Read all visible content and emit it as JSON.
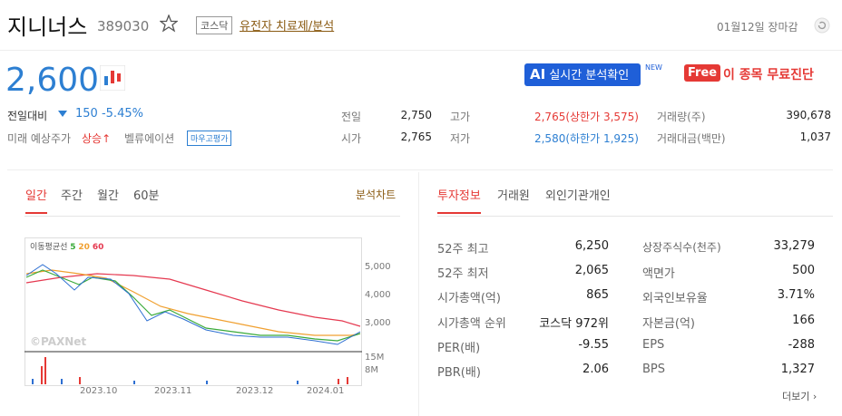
{
  "header": {
    "name": "지니너스",
    "code": "389030",
    "market": "코스닥",
    "sector": "유전자 치료제/분석",
    "date": "01월12일 장마감"
  },
  "price": {
    "current": "2,600",
    "change_label": "전일대비",
    "change": "150",
    "change_pct": "-5.45%",
    "forecast_label": "미래 예상주가",
    "forecast": "상승",
    "valuation_label": "벨류에이션",
    "valuation": "마우고평가"
  },
  "buttons": {
    "ai": "AI",
    "ai_text": "실시간 분석확인",
    "new": "NEW",
    "free": "Free",
    "free_text": "이 종목 무료진단"
  },
  "quote": {
    "rows": [
      [
        "전일",
        "2,750",
        "고가",
        "2,765(상한가 3,575)",
        "거래량(주)",
        "390,678"
      ],
      [
        "시가",
        "2,765",
        "저가",
        "2,580(하한가 1,925)",
        "거래대금(백만)",
        "1,037"
      ]
    ]
  },
  "chart": {
    "tabs": [
      "일간",
      "주간",
      "월간",
      "60분"
    ],
    "link": "분석차트",
    "ma_label": "이동평균선",
    "ma": [
      "5",
      "20",
      "60"
    ],
    "y_labels": [
      "5,000",
      "4,000",
      "3,000"
    ],
    "vol_labels": [
      "15M",
      "8M"
    ],
    "x_labels": [
      "2023.10",
      "2023.11",
      "2023.12",
      "2024.01"
    ],
    "watermark": "©PAXNet"
  },
  "info": {
    "tabs": [
      "투자정보",
      "거래원",
      "외인기관개인"
    ],
    "rows": [
      [
        "52주 최고",
        "6,250",
        "상장주식수(천주)",
        "33,279"
      ],
      [
        "52주 최저",
        "2,065",
        "액면가",
        "500"
      ],
      [
        "시가총액(억)",
        "865",
        "외국인보유율",
        "3.71%"
      ],
      [
        "시가총액 순위",
        "코스닥 972위",
        "자본금(억)",
        "166"
      ],
      [
        "PER(배)",
        "-9.55",
        "EPS",
        "-288"
      ],
      [
        "PBR(배)",
        "2.06",
        "BPS",
        "1,327"
      ]
    ],
    "more": "더보기"
  }
}
